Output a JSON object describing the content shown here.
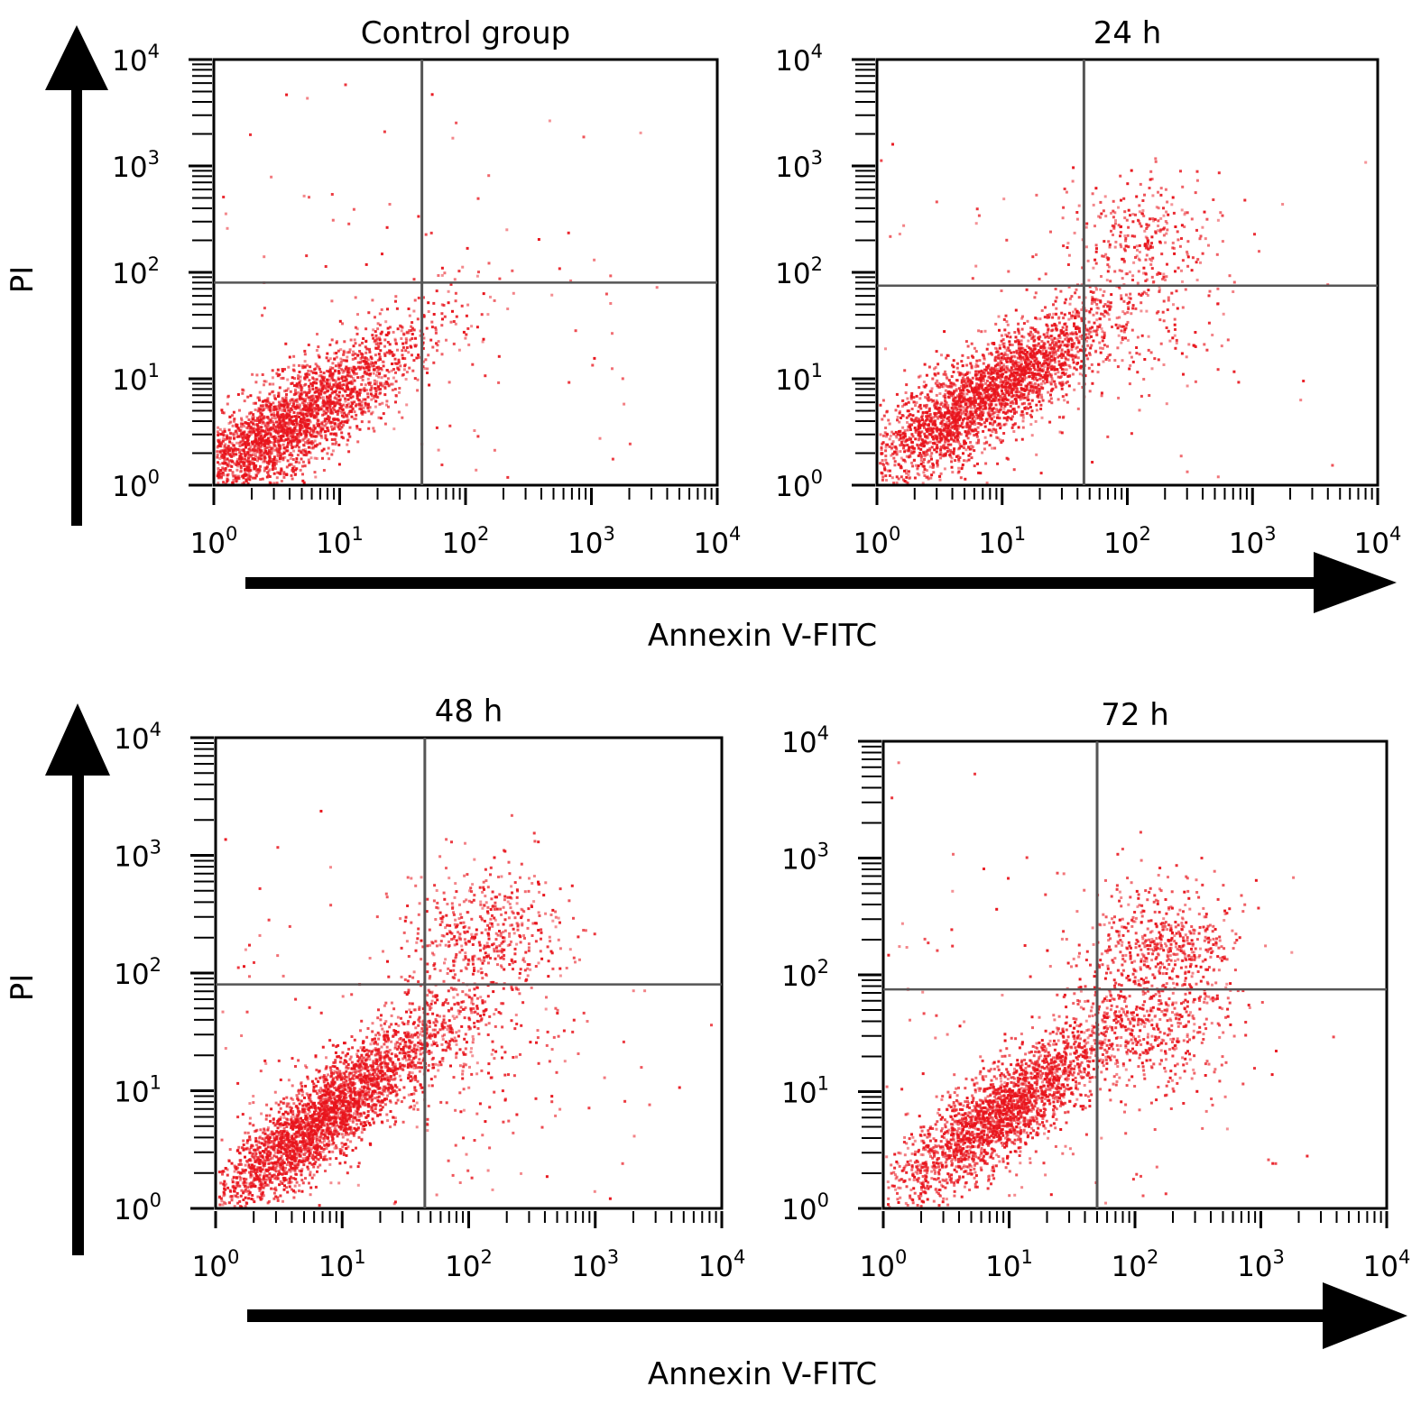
{
  "figure": {
    "y_axis_label": "PI",
    "x_axis_label": "Annexin V-FITC"
  },
  "colors": {
    "dots": "#e8141c",
    "frame": "#000000",
    "gate": "#555555"
  },
  "chart_data": [
    {
      "type": "scatter",
      "title": "Control group",
      "xlabel": "Annexin V-FITC",
      "ylabel": "PI",
      "xscale": "log",
      "yscale": "log",
      "xlim": [
        1,
        10000
      ],
      "ylim": [
        1,
        10000
      ],
      "x_ticks": [
        "10^0",
        "10^1",
        "10^2",
        "10^3",
        "10^4"
      ],
      "y_ticks": [
        "10^0",
        "10^1",
        "10^2",
        "10^3",
        "10^4"
      ],
      "quadrant_gates": {
        "x": 45,
        "y": 80
      },
      "populations": [
        {
          "name": "",
          "center": [
            3,
            3
          ],
          "spread": [
            0.55,
            0.45
          ],
          "corr": 0.85,
          "count": 2400
        },
        {
          "name": "",
          "center": [
            8,
            8
          ],
          "spread": [
            0.5,
            0.4
          ],
          "corr": 0.85,
          "count": 600
        },
        {
          "name": "",
          "center": [
            15,
            15
          ],
          "spread": [
            1.3,
            1.3
          ],
          "corr": 0.0,
          "count": 160
        },
        {
          "name": "",
          "center": [
            100,
            80
          ],
          "spread": [
            0.6,
            0.5
          ],
          "corr": 0.0,
          "count": 14
        }
      ]
    },
    {
      "type": "scatter",
      "title": "24 h",
      "xlabel": "Annexin V-FITC",
      "ylabel": "PI",
      "xscale": "log",
      "yscale": "log",
      "xlim": [
        1,
        10000
      ],
      "ylim": [
        1,
        10000
      ],
      "x_ticks": [
        "10^0",
        "10^1",
        "10^2",
        "10^3",
        "10^4"
      ],
      "y_ticks": [
        "10^0",
        "10^1",
        "10^2",
        "10^3",
        "10^4"
      ],
      "quadrant_gates": {
        "x": 45,
        "y": 75
      },
      "populations": [
        {
          "name": "",
          "center": [
            6,
            6
          ],
          "spread": [
            0.55,
            0.45
          ],
          "corr": 0.85,
          "count": 2300
        },
        {
          "name": "",
          "center": [
            12,
            12
          ],
          "spread": [
            0.45,
            0.35
          ],
          "corr": 0.85,
          "count": 600
        },
        {
          "name": "",
          "center": [
            12,
            10
          ],
          "spread": [
            1.3,
            1.3
          ],
          "corr": 0.0,
          "count": 150
        },
        {
          "name": "",
          "center": [
            140,
            250
          ],
          "spread": [
            0.3,
            0.3
          ],
          "corr": 0.0,
          "count": 260
        },
        {
          "name": "",
          "center": [
            110,
            35
          ],
          "spread": [
            0.45,
            0.45
          ],
          "corr": 0.0,
          "count": 120
        }
      ]
    },
    {
      "type": "scatter",
      "title": "48 h",
      "xlabel": "Annexin V-FITC",
      "ylabel": "PI",
      "xscale": "log",
      "yscale": "log",
      "xlim": [
        1,
        10000
      ],
      "ylim": [
        1,
        10000
      ],
      "x_ticks": [
        "10^0",
        "10^1",
        "10^2",
        "10^3",
        "10^4"
      ],
      "y_ticks": [
        "10^0",
        "10^1",
        "10^2",
        "10^3",
        "10^4"
      ],
      "quadrant_gates": {
        "x": 45,
        "y": 80
      },
      "populations": [
        {
          "name": "",
          "center": [
            6,
            5
          ],
          "spread": [
            0.45,
            0.4
          ],
          "corr": 0.88,
          "count": 2200
        },
        {
          "name": "",
          "center": [
            14,
            13
          ],
          "spread": [
            0.5,
            0.45
          ],
          "corr": 0.88,
          "count": 800
        },
        {
          "name": "",
          "center": [
            15,
            12
          ],
          "spread": [
            1.2,
            1.2
          ],
          "corr": 0.0,
          "count": 160
        },
        {
          "name": "",
          "center": [
            140,
            230
          ],
          "spread": [
            0.3,
            0.3
          ],
          "corr": 0.0,
          "count": 420
        },
        {
          "name": "",
          "center": [
            90,
            25
          ],
          "spread": [
            0.45,
            0.5
          ],
          "corr": 0.0,
          "count": 260
        }
      ]
    },
    {
      "type": "scatter",
      "title": "72 h",
      "xlabel": "Annexin V-FITC",
      "ylabel": "PI",
      "xscale": "log",
      "yscale": "log",
      "xlim": [
        1,
        10000
      ],
      "ylim": [
        1,
        10000
      ],
      "x_ticks": [
        "10^0",
        "10^1",
        "10^2",
        "10^3",
        "10^4"
      ],
      "y_ticks": [
        "10^0",
        "10^1",
        "10^2",
        "10^3",
        "10^4"
      ],
      "quadrant_gates": {
        "x": 50,
        "y": 75
      },
      "populations": [
        {
          "name": "",
          "center": [
            9,
            7
          ],
          "spread": [
            0.45,
            0.4
          ],
          "corr": 0.85,
          "count": 2300
        },
        {
          "name": "",
          "center": [
            12,
            10
          ],
          "spread": [
            1.2,
            1.2
          ],
          "corr": 0.0,
          "count": 220
        },
        {
          "name": "",
          "center": [
            160,
            180
          ],
          "spread": [
            0.3,
            0.25
          ],
          "corr": 0.0,
          "count": 520
        },
        {
          "name": "",
          "center": [
            140,
            35
          ],
          "spread": [
            0.35,
            0.3
          ],
          "corr": 0.0,
          "count": 420
        }
      ]
    }
  ]
}
